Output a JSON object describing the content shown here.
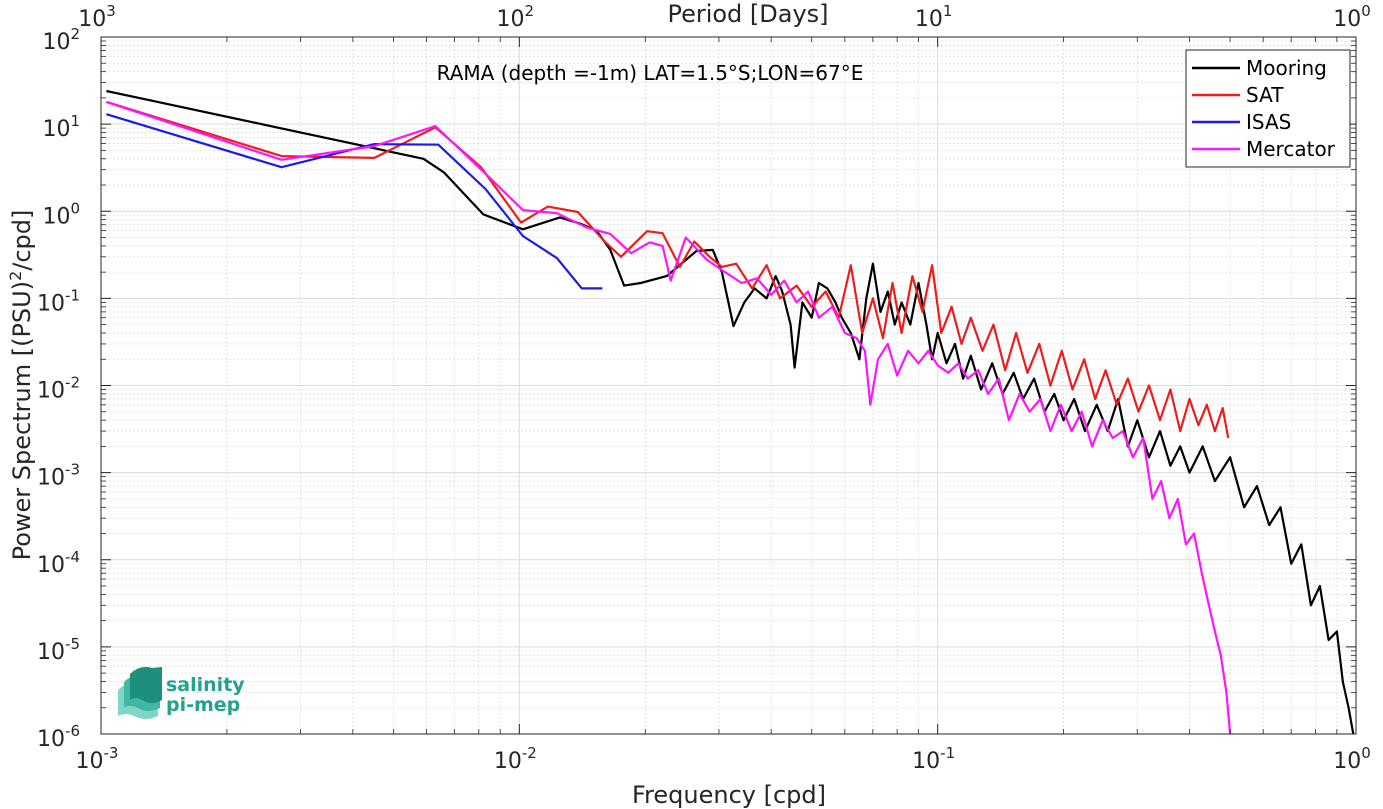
{
  "chart_data": {
    "type": "line",
    "title": "RAMA (depth =-1m) LAT=1.5°S;LON=67°E",
    "xlabel": "Frequency [cpd]",
    "ylabel_main": "Power Spectrum [(PSU)",
    "ylabel_sup": "2",
    "ylabel_tail": "/cpd]",
    "top_axis_label": "Period [Days]",
    "xscale": "log",
    "yscale": "log",
    "xlim": [
      0.001,
      1
    ],
    "ylim": [
      1e-06,
      100
    ],
    "grid": true,
    "legend_position": "top-right",
    "x_ticks": [
      {
        "base": "10",
        "exp": "-3",
        "value": 0.001
      },
      {
        "base": "10",
        "exp": "-2",
        "value": 0.01
      },
      {
        "base": "10",
        "exp": "-1",
        "value": 0.1
      },
      {
        "base": "10",
        "exp": "0",
        "value": 1
      }
    ],
    "top_ticks": [
      {
        "base": "10",
        "exp": "3",
        "value": 0.001
      },
      {
        "base": "10",
        "exp": "2",
        "value": 0.01
      },
      {
        "base": "10",
        "exp": "1",
        "value": 0.1
      },
      {
        "base": "10",
        "exp": "0",
        "value": 1
      }
    ],
    "y_ticks": [
      {
        "base": "10",
        "exp": "2",
        "value": 100
      },
      {
        "base": "10",
        "exp": "1",
        "value": 10
      },
      {
        "base": "10",
        "exp": "0",
        "value": 1
      },
      {
        "base": "10",
        "exp": "-1",
        "value": 0.1
      },
      {
        "base": "10",
        "exp": "-2",
        "value": 0.01
      },
      {
        "base": "10",
        "exp": "-3",
        "value": 0.001
      },
      {
        "base": "10",
        "exp": "-4",
        "value": 0.0001
      },
      {
        "base": "10",
        "exp": "-5",
        "value": 1e-05
      },
      {
        "base": "10",
        "exp": "-6",
        "value": 1e-06
      }
    ],
    "series": [
      {
        "name": "Mooring",
        "color": "#000000",
        "points": [
          [
            0.00103,
            24
          ],
          [
            0.0059,
            4.0
          ],
          [
            0.0066,
            2.8
          ],
          [
            0.0082,
            0.92
          ],
          [
            0.0102,
            0.62
          ],
          [
            0.0125,
            0.85
          ],
          [
            0.014,
            0.72
          ],
          [
            0.0153,
            0.6
          ],
          [
            0.0165,
            0.36
          ],
          [
            0.0178,
            0.14
          ],
          [
            0.0195,
            0.15
          ],
          [
            0.0225,
            0.18
          ],
          [
            0.0265,
            0.35
          ],
          [
            0.029,
            0.36
          ],
          [
            0.0305,
            0.2
          ],
          [
            0.0325,
            0.048
          ],
          [
            0.0345,
            0.09
          ],
          [
            0.0365,
            0.13
          ],
          [
            0.039,
            0.1
          ],
          [
            0.041,
            0.18
          ],
          [
            0.0425,
            0.12
          ],
          [
            0.0445,
            0.05
          ],
          [
            0.0455,
            0.016
          ],
          [
            0.0475,
            0.09
          ],
          [
            0.05,
            0.06
          ],
          [
            0.052,
            0.15
          ],
          [
            0.0545,
            0.13
          ],
          [
            0.057,
            0.09
          ],
          [
            0.059,
            0.06
          ],
          [
            0.062,
            0.04
          ],
          [
            0.065,
            0.02
          ],
          [
            0.0675,
            0.1
          ],
          [
            0.07,
            0.25
          ],
          [
            0.073,
            0.07
          ],
          [
            0.076,
            0.12
          ],
          [
            0.079,
            0.05
          ],
          [
            0.082,
            0.09
          ],
          [
            0.086,
            0.05
          ],
          [
            0.09,
            0.15
          ],
          [
            0.094,
            0.05
          ],
          [
            0.097,
            0.02
          ],
          [
            0.1,
            0.04
          ],
          [
            0.105,
            0.018
          ],
          [
            0.11,
            0.03
          ],
          [
            0.115,
            0.012
          ],
          [
            0.12,
            0.022
          ],
          [
            0.127,
            0.009
          ],
          [
            0.135,
            0.018
          ],
          [
            0.143,
            0.008
          ],
          [
            0.152,
            0.014
          ],
          [
            0.16,
            0.007
          ],
          [
            0.17,
            0.012
          ],
          [
            0.18,
            0.005
          ],
          [
            0.19,
            0.008
          ],
          [
            0.2,
            0.004
          ],
          [
            0.212,
            0.007
          ],
          [
            0.225,
            0.003
          ],
          [
            0.24,
            0.006
          ],
          [
            0.255,
            0.003
          ],
          [
            0.27,
            0.007
          ],
          [
            0.285,
            0.002
          ],
          [
            0.3,
            0.004
          ],
          [
            0.32,
            0.0015
          ],
          [
            0.34,
            0.003
          ],
          [
            0.36,
            0.0012
          ],
          [
            0.38,
            0.002
          ],
          [
            0.4,
            0.001
          ],
          [
            0.43,
            0.002
          ],
          [
            0.46,
            0.0008
          ],
          [
            0.5,
            0.0015
          ],
          [
            0.54,
            0.0004
          ],
          [
            0.58,
            0.0007
          ],
          [
            0.62,
            0.00025
          ],
          [
            0.66,
            0.0004
          ],
          [
            0.7,
            9e-05
          ],
          [
            0.74,
            0.00015
          ],
          [
            0.78,
            3e-05
          ],
          [
            0.82,
            5e-05
          ],
          [
            0.86,
            1.2e-05
          ],
          [
            0.9,
            1.5e-05
          ],
          [
            0.93,
            4e-06
          ],
          [
            0.96,
            2e-06
          ],
          [
            0.985,
            1e-06
          ]
        ]
      },
      {
        "name": "SAT",
        "color": "#ee1c1c",
        "points": [
          [
            0.00103,
            18
          ],
          [
            0.0027,
            4.3
          ],
          [
            0.0045,
            4.1
          ],
          [
            0.0063,
            9.2
          ],
          [
            0.0081,
            3.2
          ],
          [
            0.0101,
            0.74
          ],
          [
            0.0117,
            1.13
          ],
          [
            0.0138,
            0.98
          ],
          [
            0.016,
            0.45
          ],
          [
            0.0175,
            0.3
          ],
          [
            0.0202,
            0.59
          ],
          [
            0.022,
            0.56
          ],
          [
            0.0242,
            0.23
          ],
          [
            0.0262,
            0.45
          ],
          [
            0.0285,
            0.3
          ],
          [
            0.0305,
            0.23
          ],
          [
            0.033,
            0.25
          ],
          [
            0.036,
            0.13
          ],
          [
            0.039,
            0.24
          ],
          [
            0.042,
            0.1
          ],
          [
            0.046,
            0.14
          ],
          [
            0.05,
            0.08
          ],
          [
            0.054,
            0.12
          ],
          [
            0.058,
            0.06
          ],
          [
            0.062,
            0.24
          ],
          [
            0.066,
            0.04
          ],
          [
            0.07,
            0.1
          ],
          [
            0.074,
            0.035
          ],
          [
            0.078,
            0.15
          ],
          [
            0.082,
            0.04
          ],
          [
            0.087,
            0.18
          ],
          [
            0.092,
            0.07
          ],
          [
            0.097,
            0.24
          ],
          [
            0.102,
            0.04
          ],
          [
            0.108,
            0.08
          ],
          [
            0.114,
            0.03
          ],
          [
            0.12,
            0.06
          ],
          [
            0.128,
            0.025
          ],
          [
            0.136,
            0.05
          ],
          [
            0.145,
            0.015
          ],
          [
            0.154,
            0.04
          ],
          [
            0.164,
            0.014
          ],
          [
            0.175,
            0.03
          ],
          [
            0.186,
            0.01
          ],
          [
            0.198,
            0.025
          ],
          [
            0.21,
            0.009
          ],
          [
            0.224,
            0.02
          ],
          [
            0.238,
            0.007
          ],
          [
            0.252,
            0.015
          ],
          [
            0.268,
            0.006
          ],
          [
            0.285,
            0.012
          ],
          [
            0.302,
            0.005
          ],
          [
            0.32,
            0.01
          ],
          [
            0.34,
            0.004
          ],
          [
            0.36,
            0.009
          ],
          [
            0.38,
            0.003
          ],
          [
            0.4,
            0.007
          ],
          [
            0.42,
            0.0035
          ],
          [
            0.44,
            0.006
          ],
          [
            0.46,
            0.003
          ],
          [
            0.48,
            0.0055
          ],
          [
            0.495,
            0.0025
          ]
        ]
      },
      {
        "name": "ISAS",
        "color": "#1a1aee",
        "points": [
          [
            0.00103,
            13
          ],
          [
            0.0027,
            3.2
          ],
          [
            0.0045,
            5.9
          ],
          [
            0.0064,
            5.8
          ],
          [
            0.0083,
            1.8
          ],
          [
            0.0102,
            0.52
          ],
          [
            0.0123,
            0.29
          ],
          [
            0.0141,
            0.13
          ],
          [
            0.0158,
            0.13
          ]
        ]
      },
      {
        "name": "Mercator",
        "color": "#ff14ff",
        "points": [
          [
            0.00103,
            18
          ],
          [
            0.0027,
            3.9
          ],
          [
            0.0045,
            5.6
          ],
          [
            0.0063,
            9.5
          ],
          [
            0.0083,
            2.7
          ],
          [
            0.0102,
            1.03
          ],
          [
            0.0123,
            0.95
          ],
          [
            0.0145,
            0.65
          ],
          [
            0.0165,
            0.55
          ],
          [
            0.0185,
            0.33
          ],
          [
            0.0205,
            0.44
          ],
          [
            0.022,
            0.4
          ],
          [
            0.023,
            0.16
          ],
          [
            0.025,
            0.5
          ],
          [
            0.028,
            0.28
          ],
          [
            0.031,
            0.2
          ],
          [
            0.034,
            0.15
          ],
          [
            0.037,
            0.17
          ],
          [
            0.04,
            0.11
          ],
          [
            0.043,
            0.16
          ],
          [
            0.046,
            0.09
          ],
          [
            0.049,
            0.12
          ],
          [
            0.052,
            0.06
          ],
          [
            0.056,
            0.08
          ],
          [
            0.06,
            0.04
          ],
          [
            0.064,
            0.035
          ],
          [
            0.067,
            0.025
          ],
          [
            0.069,
            0.006
          ],
          [
            0.072,
            0.02
          ],
          [
            0.076,
            0.03
          ],
          [
            0.08,
            0.013
          ],
          [
            0.085,
            0.025
          ],
          [
            0.09,
            0.018
          ],
          [
            0.095,
            0.025
          ],
          [
            0.1,
            0.017
          ],
          [
            0.106,
            0.014
          ],
          [
            0.112,
            0.018
          ],
          [
            0.118,
            0.012
          ],
          [
            0.125,
            0.015
          ],
          [
            0.132,
            0.008
          ],
          [
            0.14,
            0.012
          ],
          [
            0.148,
            0.004
          ],
          [
            0.157,
            0.008
          ],
          [
            0.166,
            0.005
          ],
          [
            0.176,
            0.007
          ],
          [
            0.186,
            0.003
          ],
          [
            0.197,
            0.006
          ],
          [
            0.209,
            0.003
          ],
          [
            0.221,
            0.005
          ],
          [
            0.234,
            0.002
          ],
          [
            0.248,
            0.004
          ],
          [
            0.262,
            0.0025
          ],
          [
            0.277,
            0.003
          ],
          [
            0.293,
            0.0015
          ],
          [
            0.31,
            0.0025
          ],
          [
            0.326,
            0.0005
          ],
          [
            0.342,
            0.0008
          ],
          [
            0.358,
            0.0003
          ],
          [
            0.375,
            0.0005
          ],
          [
            0.392,
            0.00015
          ],
          [
            0.41,
            0.0002
          ],
          [
            0.428,
            7e-05
          ],
          [
            0.445,
            3e-05
          ],
          [
            0.46,
            1.5e-05
          ],
          [
            0.475,
            8e-06
          ],
          [
            0.49,
            3e-06
          ],
          [
            0.5,
            1e-06
          ]
        ]
      }
    ]
  },
  "logo": {
    "line1": "salinity",
    "line2": "pi-mep",
    "color": "#23a28f"
  }
}
